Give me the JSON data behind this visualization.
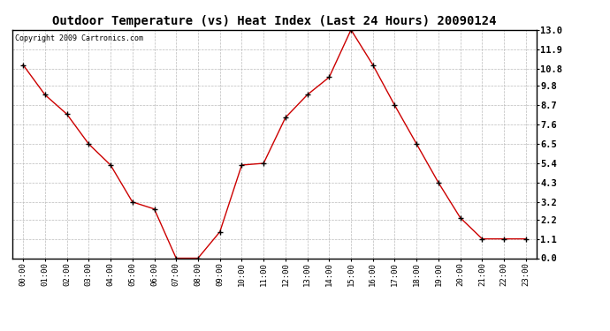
{
  "title": "Outdoor Temperature (vs) Heat Index (Last 24 Hours) 20090124",
  "copyright_text": "Copyright 2009 Cartronics.com",
  "hours": [
    "00:00",
    "01:00",
    "02:00",
    "03:00",
    "04:00",
    "05:00",
    "06:00",
    "07:00",
    "08:00",
    "09:00",
    "10:00",
    "11:00",
    "12:00",
    "13:00",
    "14:00",
    "15:00",
    "16:00",
    "17:00",
    "18:00",
    "19:00",
    "20:00",
    "21:00",
    "22:00",
    "23:00"
  ],
  "values": [
    11.0,
    9.3,
    8.2,
    6.5,
    5.3,
    3.2,
    2.8,
    0.0,
    0.0,
    1.5,
    5.3,
    5.4,
    8.0,
    9.3,
    10.3,
    13.0,
    11.0,
    8.7,
    6.5,
    4.3,
    2.3,
    1.1,
    1.1,
    1.1
  ],
  "line_color": "#cc0000",
  "marker": "+",
  "marker_color": "#000000",
  "bg_color": "#ffffff",
  "plot_bg_color": "#ffffff",
  "grid_color": "#bbbbbb",
  "ylim_min": 0.0,
  "ylim_max": 13.0,
  "yticks": [
    0.0,
    1.1,
    2.2,
    3.2,
    4.3,
    5.4,
    6.5,
    7.6,
    8.7,
    9.8,
    10.8,
    11.9,
    13.0
  ],
  "title_fontsize": 10,
  "tick_fontsize": 6.5,
  "copyright_fontsize": 6
}
